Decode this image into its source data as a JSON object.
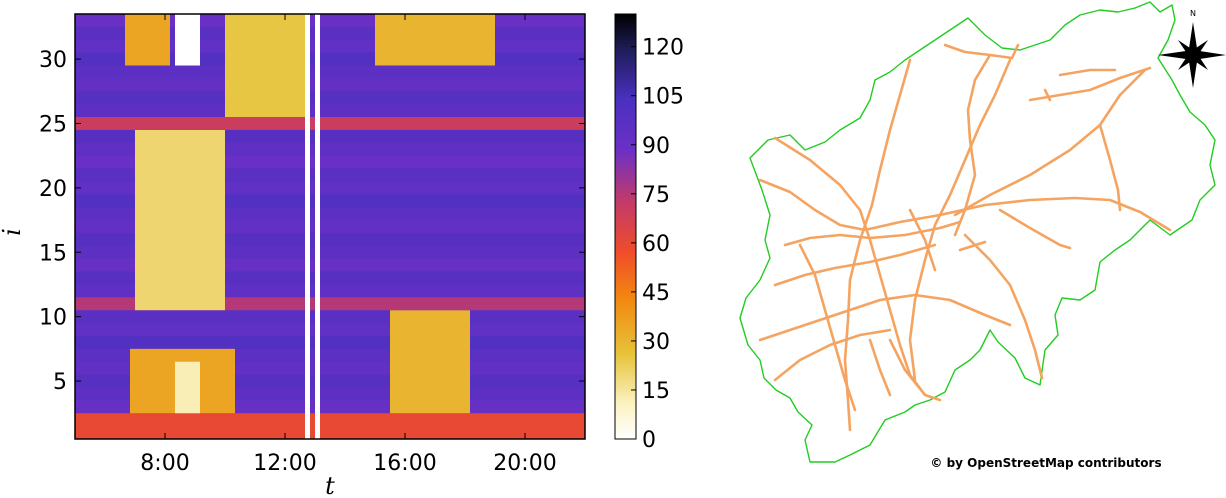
{
  "chart_data": [
    {
      "type": "heatmap",
      "xlabel": "t",
      "ylabel": "i",
      "x_range": [
        "5:00",
        "22:00"
      ],
      "y_range": [
        0.5,
        33.5
      ],
      "x_ticks": [
        "8:00",
        "12:00",
        "16:00",
        "20:00"
      ],
      "y_ticks": [
        "5",
        "10",
        "15",
        "20",
        "25",
        "30"
      ],
      "colorbar": {
        "colormap": "CMRmap_r",
        "min": 0,
        "max": 130,
        "ticks": [
          "0",
          "15",
          "30",
          "45",
          "60",
          "75",
          "90",
          "105",
          "120"
        ]
      },
      "regions": [
        {
          "rows": [
            1,
            2
          ],
          "start": "5:00",
          "end": "22:00",
          "level": 60
        },
        {
          "rows": [
            3,
            7
          ],
          "start": "6:50",
          "end": "10:20",
          "level": 35
        },
        {
          "rows": [
            3,
            6
          ],
          "start": "8:20",
          "end": "9:10",
          "level": 12
        },
        {
          "rows": [
            3,
            10
          ],
          "start": "15:30",
          "end": "18:10",
          "level": 30
        },
        {
          "rows": [
            11,
            11
          ],
          "start": "5:00",
          "end": "22:00",
          "level": 75
        },
        {
          "rows": [
            11,
            24
          ],
          "start": "7:00",
          "end": "10:00",
          "level": 20
        },
        {
          "rows": [
            25,
            25
          ],
          "start": "5:00",
          "end": "22:00",
          "level": 70
        },
        {
          "rows": [
            26,
            33
          ],
          "start": "10:00",
          "end": "12:50",
          "level": 25
        },
        {
          "rows": [
            30,
            33
          ],
          "start": "6:40",
          "end": "8:10",
          "level": 35
        },
        {
          "rows": [
            30,
            33
          ],
          "start": "15:00",
          "end": "19:00",
          "level": 30
        }
      ],
      "missing": [
        {
          "rows": [
            30,
            33
          ],
          "start": "8:20",
          "end": "9:10"
        },
        {
          "rows": [
            1,
            33
          ],
          "start": "12:40",
          "end": "12:50"
        },
        {
          "rows": [
            1,
            33
          ],
          "start": "13:00",
          "end": "13:10"
        }
      ]
    },
    {
      "type": "map",
      "credit": "© by OpenStreetMap contributors",
      "north_label": "N",
      "colors": {
        "boundary": "#22cc22",
        "roads": "#f4a460"
      }
    }
  ]
}
